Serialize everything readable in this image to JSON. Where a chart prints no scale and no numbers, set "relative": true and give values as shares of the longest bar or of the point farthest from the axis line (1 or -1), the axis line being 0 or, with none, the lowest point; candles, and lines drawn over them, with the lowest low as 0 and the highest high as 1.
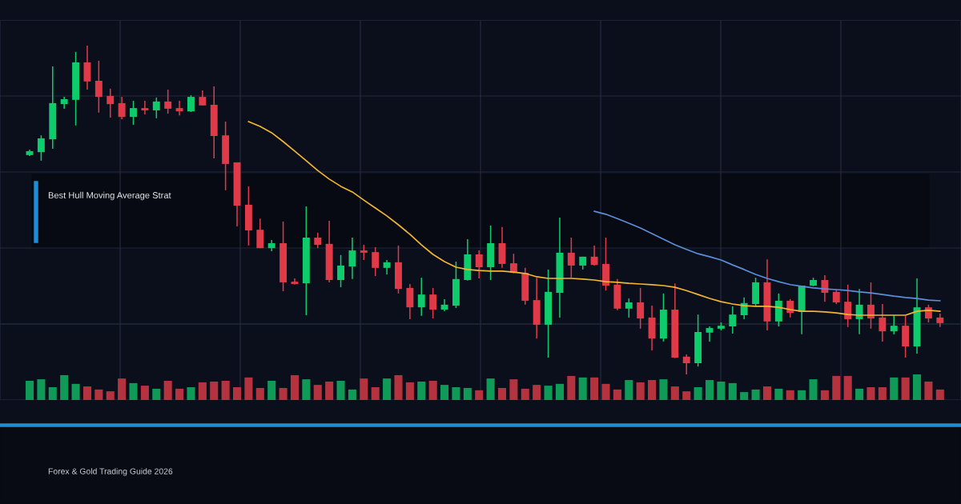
{
  "chart_data": [
    {
      "type": "candlestick",
      "relative": true,
      "grid": true,
      "tick_labels": false,
      "categories": [
        null,
        null,
        null,
        null,
        null,
        null,
        null,
        null,
        null,
        null,
        null,
        null,
        null,
        null,
        null,
        null,
        null,
        null,
        null,
        null,
        null,
        null,
        null,
        null,
        null,
        null,
        null,
        null,
        null,
        null,
        null,
        null,
        null,
        null,
        null,
        null,
        null,
        null,
        null,
        null,
        null,
        null,
        null,
        null,
        null,
        null,
        null,
        null,
        null,
        null,
        null,
        null,
        null,
        null,
        null,
        null,
        null,
        null,
        null,
        null,
        null,
        null,
        null,
        null,
        null,
        null,
        null,
        null,
        null,
        null,
        null,
        null,
        null,
        null,
        null,
        null,
        null,
        null,
        null,
        null
      ],
      "ohlc": [
        [
          0.667,
          0.684,
          0.664,
          0.679
        ],
        [
          0.676,
          0.727,
          0.65,
          0.718
        ],
        [
          0.715,
          0.937,
          0.686,
          0.825
        ],
        [
          0.822,
          0.844,
          0.808,
          0.837
        ],
        [
          0.835,
          0.981,
          0.757,
          0.949
        ],
        [
          0.949,
          1,
          0.866,
          0.891
        ],
        [
          0.893,
          0.954,
          0.796,
          0.844
        ],
        [
          0.847,
          0.869,
          0.781,
          0.822
        ],
        [
          0.825,
          0.844,
          0.776,
          0.783
        ],
        [
          0.783,
          0.832,
          0.759,
          0.81
        ],
        [
          0.81,
          0.832,
          0.791,
          0.803
        ],
        [
          0.803,
          0.842,
          0.779,
          0.83
        ],
        [
          0.83,
          0.866,
          0.793,
          0.808
        ],
        [
          0.81,
          0.832,
          0.788,
          0.8
        ],
        [
          0.8,
          0.849,
          0.798,
          0.844
        ],
        [
          0.844,
          0.864,
          0.818,
          0.818
        ],
        [
          0.82,
          0.876,
          0.657,
          0.725
        ],
        [
          0.727,
          0.769,
          0.56,
          0.64
        ],
        [
          0.645,
          0.645,
          0.45,
          0.513
        ],
        [
          0.516,
          0.572,
          0.392,
          0.438
        ],
        [
          0.44,
          0.474,
          0.384,
          0.384
        ],
        [
          0.384,
          0.409,
          0.375,
          0.399
        ],
        [
          0.399,
          0.465,
          0.253,
          0.28
        ],
        [
          0.282,
          0.292,
          0.273,
          0.275
        ],
        [
          0.277,
          0.511,
          0.18,
          0.416
        ],
        [
          0.416,
          0.431,
          0.384,
          0.394
        ],
        [
          0.397,
          0.467,
          0.28,
          0.287
        ],
        [
          0.287,
          0.363,
          0.265,
          0.331
        ],
        [
          0.328,
          0.416,
          0.29,
          0.377
        ],
        [
          0.377,
          0.394,
          0.348,
          0.37
        ],
        [
          0.372,
          0.387,
          0.299,
          0.324
        ],
        [
          0.324,
          0.348,
          0.304,
          0.341
        ],
        [
          0.341,
          0.392,
          0.246,
          0.26
        ],
        [
          0.263,
          0.275,
          0.168,
          0.204
        ],
        [
          0.204,
          0.294,
          0.178,
          0.243
        ],
        [
          0.243,
          0.263,
          0.17,
          0.197
        ],
        [
          0.197,
          0.229,
          0.192,
          0.212
        ],
        [
          0.209,
          0.343,
          0.202,
          0.29
        ],
        [
          0.287,
          0.411,
          0.285,
          0.365
        ],
        [
          0.365,
          0.377,
          0.292,
          0.326
        ],
        [
          0.326,
          0.453,
          0.287,
          0.399
        ],
        [
          0.399,
          0.448,
          0.324,
          0.336
        ],
        [
          0.338,
          0.367,
          0.307,
          0.309
        ],
        [
          0.309,
          0.324,
          0.212,
          0.224
        ],
        [
          0.226,
          0.294,
          0.109,
          0.151
        ],
        [
          0.151,
          0.319,
          0.051,
          0.251
        ],
        [
          0.248,
          0.477,
          0.173,
          0.37
        ],
        [
          0.37,
          0.416,
          0.294,
          0.331
        ],
        [
          0.331,
          0.358,
          0.319,
          0.358
        ],
        [
          0.358,
          0.392,
          0.331,
          0.333
        ],
        [
          0.336,
          0.416,
          0.255,
          0.27
        ],
        [
          0.273,
          0.29,
          0.195,
          0.2
        ],
        [
          0.2,
          0.231,
          0.173,
          0.219
        ],
        [
          0.219,
          0.263,
          0.139,
          0.17
        ],
        [
          0.173,
          0.209,
          0.073,
          0.109
        ],
        [
          0.109,
          0.246,
          0.1,
          0.197
        ],
        [
          0.197,
          0.277,
          0.049,
          0.051
        ],
        [
          0.054,
          0.061,
          0,
          0.034
        ],
        [
          0.034,
          0.182,
          0.024,
          0.129
        ],
        [
          0.127,
          0.146,
          0.1,
          0.141
        ],
        [
          0.139,
          0.158,
          0.134,
          0.148
        ],
        [
          0.146,
          0.207,
          0.124,
          0.182
        ],
        [
          0.18,
          0.234,
          0.168,
          0.217
        ],
        [
          0.214,
          0.294,
          0.209,
          0.28
        ],
        [
          0.28,
          0.35,
          0.134,
          0.161
        ],
        [
          0.161,
          0.246,
          0.146,
          0.224
        ],
        [
          0.224,
          0.229,
          0.173,
          0.187
        ],
        [
          0.19,
          0.27,
          0.122,
          0.27
        ],
        [
          0.27,
          0.294,
          0.268,
          0.287
        ],
        [
          0.287,
          0.302,
          0.221,
          0.248
        ],
        [
          0.251,
          0.258,
          0.214,
          0.219
        ],
        [
          0.221,
          0.273,
          0.144,
          0.168
        ],
        [
          0.168,
          0.26,
          0.122,
          0.212
        ],
        [
          0.212,
          0.28,
          0.139,
          0.17
        ],
        [
          0.173,
          0.214,
          0.1,
          0.131
        ],
        [
          0.131,
          0.18,
          0.122,
          0.148
        ],
        [
          0.148,
          0.178,
          0.051,
          0.085
        ],
        [
          0.085,
          0.292,
          0.063,
          0.204
        ],
        [
          0.204,
          0.212,
          0.158,
          0.17
        ],
        [
          0.173,
          0.185,
          0.144,
          0.156
        ]
      ],
      "colors": [
        "#0ecb6b",
        "#0ecb6b",
        "#0ecb6b",
        "#0ecb6b",
        "#0ecb6b",
        "#e03a48",
        "#e03a48",
        "#e03a48",
        "#e03a48",
        "#0ecb6b",
        "#e03a48",
        "#0ecb6b",
        "#e03a48",
        "#e03a48",
        "#0ecb6b",
        "#e03a48",
        "#e03a48",
        "#e03a48",
        "#e03a48",
        "#e03a48",
        "#e03a48",
        "#0ecb6b",
        "#e03a48",
        "#e03a48",
        "#0ecb6b",
        "#e03a48",
        "#e03a48",
        "#0ecb6b",
        "#0ecb6b",
        "#e03a48",
        "#e03a48",
        "#0ecb6b",
        "#e03a48",
        "#e03a48",
        "#0ecb6b",
        "#e03a48",
        "#0ecb6b",
        "#0ecb6b",
        "#0ecb6b",
        "#e03a48",
        "#0ecb6b",
        "#e03a48",
        "#e03a48",
        "#e03a48",
        "#e03a48",
        "#0ecb6b",
        "#0ecb6b",
        "#e03a48",
        "#0ecb6b",
        "#e03a48",
        "#e03a48",
        "#e03a48",
        "#0ecb6b",
        "#e03a48",
        "#e03a48",
        "#0ecb6b",
        "#e03a48",
        "#e03a48",
        "#0ecb6b",
        "#0ecb6b",
        "#0ecb6b",
        "#0ecb6b",
        "#0ecb6b",
        "#0ecb6b",
        "#e03a48",
        "#0ecb6b",
        "#e03a48",
        "#0ecb6b",
        "#0ecb6b",
        "#e03a48",
        "#e03a48",
        "#e03a48",
        "#0ecb6b",
        "#e03a48",
        "#e03a48",
        "#0ecb6b",
        "#e03a48",
        "#0ecb6b",
        "#e03a48",
        "#e03a48"
      ],
      "series": [
        {
          "type": "line",
          "color": "#f2b632",
          "values": [
            null,
            null,
            null,
            null,
            null,
            null,
            null,
            null,
            null,
            null,
            null,
            null,
            null,
            null,
            null,
            null,
            null,
            null,
            null,
            0.769,
            0.754,
            0.735,
            0.708,
            0.679,
            0.65,
            0.62,
            0.594,
            0.572,
            0.555,
            0.53,
            0.506,
            0.482,
            0.455,
            0.426,
            0.394,
            0.365,
            0.343,
            0.326,
            0.319,
            0.316,
            0.314,
            0.314,
            0.311,
            0.307,
            0.297,
            0.292,
            0.292,
            0.292,
            0.29,
            0.287,
            0.282,
            0.28,
            0.277,
            0.275,
            0.273,
            0.27,
            0.265,
            0.255,
            0.243,
            0.231,
            0.221,
            0.214,
            0.209,
            0.207,
            0.207,
            0.204,
            0.197,
            0.192,
            0.192,
            0.19,
            0.187,
            0.182,
            0.18,
            0.18,
            0.18,
            0.18,
            0.18,
            0.192,
            0.195,
            0.192
          ]
        },
        {
          "type": "line",
          "color": "#5b8fd9",
          "values": [
            null,
            null,
            null,
            null,
            null,
            null,
            null,
            null,
            null,
            null,
            null,
            null,
            null,
            null,
            null,
            null,
            null,
            null,
            null,
            null,
            null,
            null,
            null,
            null,
            null,
            null,
            null,
            null,
            null,
            null,
            null,
            null,
            null,
            null,
            null,
            null,
            null,
            null,
            null,
            null,
            null,
            null,
            null,
            null,
            null,
            null,
            null,
            null,
            null,
            0.496,
            0.487,
            0.474,
            0.46,
            0.445,
            0.428,
            0.411,
            0.394,
            0.38,
            0.367,
            0.358,
            0.348,
            0.333,
            0.319,
            0.304,
            0.292,
            0.282,
            0.273,
            0.268,
            0.263,
            0.26,
            0.258,
            0.255,
            0.251,
            0.248,
            0.243,
            0.238,
            0.234,
            0.231,
            0.226,
            0.224
          ]
        }
      ],
      "annotations": [
        "Best Hull Moving Average Strat"
      ]
    },
    {
      "type": "bar",
      "relative": true,
      "tick_labels": false,
      "categories": [
        null,
        null,
        null,
        null,
        null,
        null,
        null,
        null,
        null,
        null,
        null,
        null,
        null,
        null,
        null,
        null,
        null,
        null,
        null,
        null,
        null,
        null,
        null,
        null,
        null,
        null,
        null,
        null,
        null,
        null,
        null,
        null,
        null,
        null,
        null,
        null,
        null,
        null,
        null,
        null,
        null,
        null,
        null,
        null,
        null,
        null,
        null,
        null,
        null,
        null,
        null,
        null,
        null,
        null,
        null,
        null,
        null,
        null,
        null,
        null,
        null,
        null,
        null,
        null,
        null,
        null,
        null,
        null,
        null,
        null,
        null,
        null,
        null,
        null,
        null,
        null,
        null,
        null,
        null,
        null
      ],
      "values": [
        0.75,
        0.81,
        0.5,
        0.97,
        0.63,
        0.53,
        0.41,
        0.34,
        0.84,
        0.66,
        0.56,
        0.44,
        0.75,
        0.44,
        0.5,
        0.69,
        0.72,
        0.75,
        0.5,
        0.88,
        0.47,
        0.75,
        0.47,
        0.97,
        0.81,
        0.59,
        0.72,
        0.75,
        0.41,
        0.84,
        0.5,
        0.84,
        0.97,
        0.69,
        0.72,
        0.75,
        0.59,
        0.5,
        0.47,
        0.38,
        0.84,
        0.47,
        0.81,
        0.44,
        0.59,
        0.56,
        0.63,
        0.94,
        0.88,
        0.88,
        0.63,
        0.41,
        0.78,
        0.69,
        0.78,
        0.81,
        0.53,
        0.34,
        0.5,
        0.78,
        0.72,
        0.66,
        0.31,
        0.41,
        0.53,
        0.44,
        0.38,
        0.38,
        0.81,
        0.38,
        0.94,
        0.94,
        0.44,
        0.5,
        0.5,
        0.88,
        0.88,
        1,
        0.72,
        0.41
      ],
      "colors": [
        "#0f9a57",
        "#0f9a57",
        "#0f9a57",
        "#0f9a57",
        "#0f9a57",
        "#b5333f",
        "#b5333f",
        "#b5333f",
        "#b5333f",
        "#0f9a57",
        "#b5333f",
        "#0f9a57",
        "#b5333f",
        "#b5333f",
        "#0f9a57",
        "#b5333f",
        "#b5333f",
        "#b5333f",
        "#b5333f",
        "#b5333f",
        "#b5333f",
        "#0f9a57",
        "#b5333f",
        "#b5333f",
        "#0f9a57",
        "#b5333f",
        "#b5333f",
        "#0f9a57",
        "#0f9a57",
        "#b5333f",
        "#b5333f",
        "#0f9a57",
        "#b5333f",
        "#b5333f",
        "#0f9a57",
        "#b5333f",
        "#0f9a57",
        "#0f9a57",
        "#0f9a57",
        "#b5333f",
        "#0f9a57",
        "#b5333f",
        "#b5333f",
        "#b5333f",
        "#b5333f",
        "#0f9a57",
        "#0f9a57",
        "#b5333f",
        "#0f9a57",
        "#b5333f",
        "#b5333f",
        "#b5333f",
        "#0f9a57",
        "#b5333f",
        "#b5333f",
        "#0f9a57",
        "#b5333f",
        "#b5333f",
        "#0f9a57",
        "#0f9a57",
        "#0f9a57",
        "#0f9a57",
        "#0f9a57",
        "#0f9a57",
        "#b5333f",
        "#0f9a57",
        "#b5333f",
        "#0f9a57",
        "#0f9a57",
        "#b5333f",
        "#b5333f",
        "#b5333f",
        "#0f9a57",
        "#b5333f",
        "#b5333f",
        "#0f9a57",
        "#b5333f",
        "#0f9a57",
        "#b5333f",
        "#b5333f"
      ],
      "annotations": [
        "Forex & Gold Trading Guide 2026"
      ]
    }
  ]
}
